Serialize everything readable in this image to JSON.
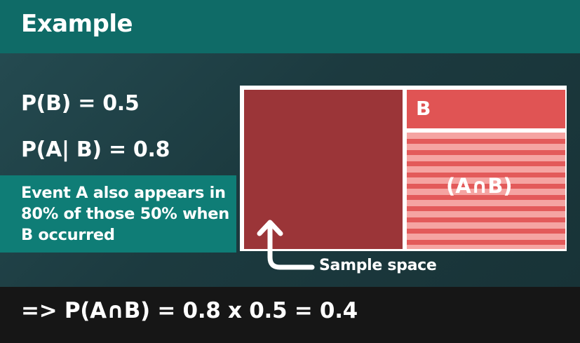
{
  "title": "Example",
  "formulas": {
    "p_b": "P(B) = 0.5",
    "p_a_given_b": "P(A| B) = 0.8"
  },
  "event_text": "Event A also appears in 80% of those 50% when B occurred",
  "diagram": {
    "label_b": "B",
    "label_intersection": "(A∩B)",
    "sample_space_label": "Sample space"
  },
  "result": "=> P(A∩B) = 0.8 x 0.5 = 0.4",
  "colors": {
    "title_bar": "#0f6b67",
    "event_box": "#0f7d76",
    "sample_space": "#9b3538",
    "b_region": "#e05454",
    "intersection_stripe_light": "#f5a4a2",
    "intersection_stripe_dark": "#e35a5a",
    "bottom_bar": "#161616"
  },
  "icons": [
    "up-arrow-icon"
  ]
}
